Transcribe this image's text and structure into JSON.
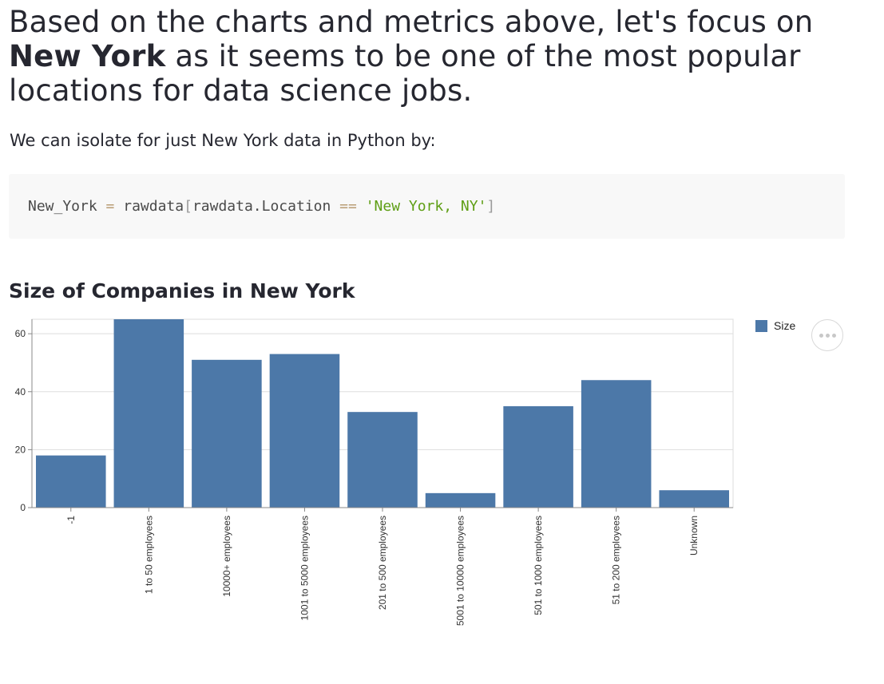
{
  "headline": {
    "line_before": "Based on the charts and metrics above, let's focus on",
    "emphasis": "New York",
    "line_after": " as it seems to be one of the most popular locations for data science jobs."
  },
  "intro": "We can isolate for just New York data in Python by:",
  "code": {
    "var": "New_York",
    "eq": "=",
    "obj": "rawdata",
    "open": "[",
    "attr": "rawdata.Location",
    "cmp": "==",
    "str": "'New York, NY'",
    "close": "]"
  },
  "chart_title": "Size of Companies in New York",
  "legend": {
    "label": "Size",
    "color": "#4c78a8"
  },
  "actions_icon": "more-horizontal-icon",
  "chart_data": {
    "type": "bar",
    "title": "Size of Companies in New York",
    "xlabel": "",
    "ylabel": "",
    "categories": [
      "-1",
      "1 to 50 employees",
      "10000+ employees",
      "1001 to 5000 employees",
      "201 to 500 employees",
      "5001 to 10000 employees",
      "501 to 1000 employees",
      "51 to 200 employees",
      "Unknown"
    ],
    "series": [
      {
        "name": "Size",
        "color": "#4c78a8",
        "values": [
          18,
          65,
          51,
          53,
          33,
          5,
          35,
          44,
          6
        ]
      }
    ],
    "ylim": [
      0,
      65
    ],
    "yticks": [
      "0",
      "20",
      "40",
      "60"
    ],
    "grid": true,
    "legend_position": "right"
  }
}
